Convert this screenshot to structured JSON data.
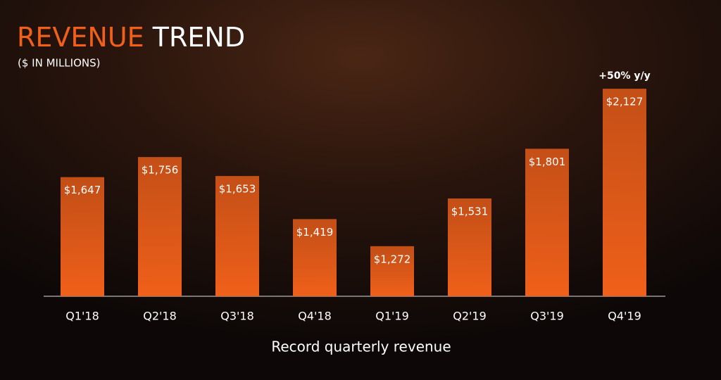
{
  "chart_data": {
    "type": "bar",
    "title": {
      "highlight": "REVENUE",
      "rest": "TREND"
    },
    "subtitle": "($ IN MILLIONS)",
    "x_label": "Record quarterly revenue",
    "categories": [
      "Q1'18",
      "Q2'18",
      "Q3'18",
      "Q4'18",
      "Q1'19",
      "Q2'19",
      "Q3'19",
      "Q4'19"
    ],
    "values": [
      1647,
      1756,
      1653,
      1419,
      1272,
      1531,
      1801,
      2127
    ],
    "value_labels": [
      "$1,647",
      "$1,756",
      "$1,653",
      "$1,419",
      "$1,272",
      "$1,531",
      "$1,801",
      "$2,127"
    ],
    "annotations": [
      {
        "text": "+50% y/y",
        "index": 7
      }
    ],
    "color": "#f0601a",
    "title_color": "#f0601a",
    "ylim": [
      1000,
      2200
    ]
  }
}
